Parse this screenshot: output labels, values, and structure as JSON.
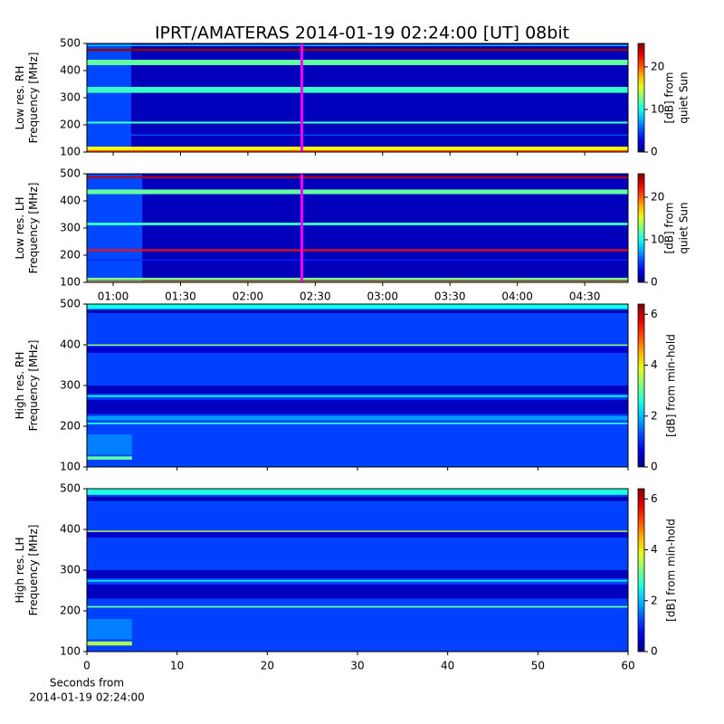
{
  "chart_data": [
    {
      "type": "spectrogram",
      "title": "IPRT/AMATERAS 2014-01-19 02:24:00 [UT]   08bit",
      "colormap": "jet",
      "ylabel": [
        "Low res. RH",
        "Frequency [MHz]"
      ],
      "colorbar_label": [
        "[dB] from",
        "quiet Sun"
      ],
      "xlim": [
        48.3,
        289.3
      ],
      "xticks": [
        60,
        90,
        120,
        150,
        180,
        210,
        240,
        270
      ],
      "ylim": [
        100,
        500
      ],
      "yticks": [
        100,
        200,
        300,
        400,
        500
      ],
      "clim": [
        0,
        25.5
      ],
      "cticks": [
        0,
        10,
        20
      ],
      "background_db": 1.5,
      "patches": [
        {
          "x": [
            48.3,
            68
          ],
          "freq": [
            100,
            500
          ],
          "db": 5
        }
      ],
      "bands": [
        {
          "freq": [
            100,
            107
          ],
          "db": 20
        },
        {
          "freq": [
            107,
            120
          ],
          "db": 16
        },
        {
          "freq": [
            160,
            165
          ],
          "db": 5
        },
        {
          "freq": [
            205,
            212
          ],
          "db": 11
        },
        {
          "freq": [
            318,
            340
          ],
          "db": 11
        },
        {
          "freq": [
            420,
            440
          ],
          "db": 12
        },
        {
          "freq": [
            472,
            480
          ],
          "db": 25
        },
        {
          "freq": [
            490,
            495
          ],
          "db": 8
        }
      ],
      "marker": {
        "value": 144,
        "color": "#ff00ff"
      }
    },
    {
      "type": "spectrogram",
      "colormap": "jet",
      "ylabel": [
        "Low res. LH",
        "Frequency [MHz]"
      ],
      "colorbar_label": [
        "[dB] from",
        "quiet Sun"
      ],
      "xlim": [
        48.3,
        289.3
      ],
      "xticks": [
        {
          "value": 60,
          "label": "01:00"
        },
        {
          "value": 90,
          "label": "01:30"
        },
        {
          "value": 120,
          "label": "02:00"
        },
        {
          "value": 150,
          "label": "02:30"
        },
        {
          "value": 180,
          "label": "03:00"
        },
        {
          "value": 210,
          "label": "03:30"
        },
        {
          "value": 240,
          "label": "04:00"
        },
        {
          "value": 270,
          "label": "04:30"
        }
      ],
      "ylim": [
        100,
        500
      ],
      "yticks": [
        100,
        200,
        300,
        400,
        500
      ],
      "clim": [
        0,
        25.5
      ],
      "cticks": [
        0,
        10,
        20
      ],
      "background_db": 1.5,
      "patches": [
        {
          "x": [
            48.3,
            73
          ],
          "freq": [
            100,
            500
          ],
          "db": 5
        }
      ],
      "bands": [
        {
          "freq": [
            100,
            105
          ],
          "db": 18
        },
        {
          "freq": [
            108,
            117
          ],
          "db": 13
        },
        {
          "freq": [
            180,
            185
          ],
          "db": 4
        },
        {
          "freq": [
            215,
            222
          ],
          "db": 22
        },
        {
          "freq": [
            310,
            320
          ],
          "db": 11
        },
        {
          "freq": [
            425,
            442
          ],
          "db": 12
        },
        {
          "freq": [
            483,
            490
          ],
          "db": 24
        }
      ],
      "marker": {
        "value": 144,
        "color": "#ff00ff"
      }
    },
    {
      "type": "spectrogram",
      "colormap": "jet",
      "ylabel": [
        "High res. RH",
        "Frequency [MHz]"
      ],
      "colorbar_label": [
        "[dB] from min-hold"
      ],
      "xlim": [
        0,
        60
      ],
      "xticks": [
        0,
        10,
        20,
        30,
        40,
        50,
        60
      ],
      "ylim": [
        100,
        500
      ],
      "yticks": [
        100,
        200,
        300,
        400,
        500
      ],
      "clim": [
        0,
        6.4
      ],
      "cticks": [
        0,
        2,
        4,
        6
      ],
      "background_db": 1.2,
      "patches": [
        {
          "x": [
            0,
            5
          ],
          "freq": [
            118,
            126
          ],
          "db": 3
        },
        {
          "x": [
            0,
            5
          ],
          "freq": [
            130,
            180
          ],
          "db": 1.6
        }
      ],
      "bands": [
        {
          "freq": [
            230,
            265
          ],
          "db": 0.4
        },
        {
          "freq": [
            272,
            276
          ],
          "db": 2.5
        },
        {
          "freq": [
            280,
            300
          ],
          "db": 0.4
        },
        {
          "freq": [
            205,
            209
          ],
          "db": 2.6
        },
        {
          "freq": [
            215,
            225
          ],
          "db": 1.8
        },
        {
          "freq": [
            380,
            395
          ],
          "db": 0.5
        },
        {
          "freq": [
            398,
            401
          ],
          "db": 3.5
        },
        {
          "freq": [
            478,
            485
          ],
          "db": 0.3
        },
        {
          "freq": [
            488,
            500
          ],
          "db": 2.5
        }
      ]
    },
    {
      "type": "spectrogram",
      "colormap": "jet",
      "ylabel": [
        "High res. LH",
        "Frequency [MHz]"
      ],
      "colorbar_label": [
        "[dB] from min-hold"
      ],
      "xlabel": [
        "Seconds from",
        "2014-01-19 02:24:00"
      ],
      "xlim": [
        0,
        60
      ],
      "xticks": [
        0,
        10,
        20,
        30,
        40,
        50,
        60
      ],
      "ylim": [
        100,
        500
      ],
      "yticks": [
        100,
        200,
        300,
        400,
        500
      ],
      "clim": [
        0,
        6.4
      ],
      "cticks": [
        0,
        2,
        4,
        6
      ],
      "background_db": 1.2,
      "patches": [
        {
          "x": [
            0,
            5
          ],
          "freq": [
            115,
            125
          ],
          "db": 3.5
        },
        {
          "x": [
            0,
            5
          ],
          "freq": [
            130,
            180
          ],
          "db": 1.6
        }
      ],
      "bands": [
        {
          "freq": [
            230,
            265
          ],
          "db": 0.4
        },
        {
          "freq": [
            272,
            276
          ],
          "db": 2.3
        },
        {
          "freq": [
            280,
            300
          ],
          "db": 0.4
        },
        {
          "freq": [
            208,
            212
          ],
          "db": 3
        },
        {
          "freq": [
            380,
            393
          ],
          "db": 0.5
        },
        {
          "freq": [
            394,
            397
          ],
          "db": 3.8
        },
        {
          "freq": [
            470,
            480
          ],
          "db": 0.3
        },
        {
          "freq": [
            485,
            500
          ],
          "db": 2.6
        }
      ]
    }
  ]
}
